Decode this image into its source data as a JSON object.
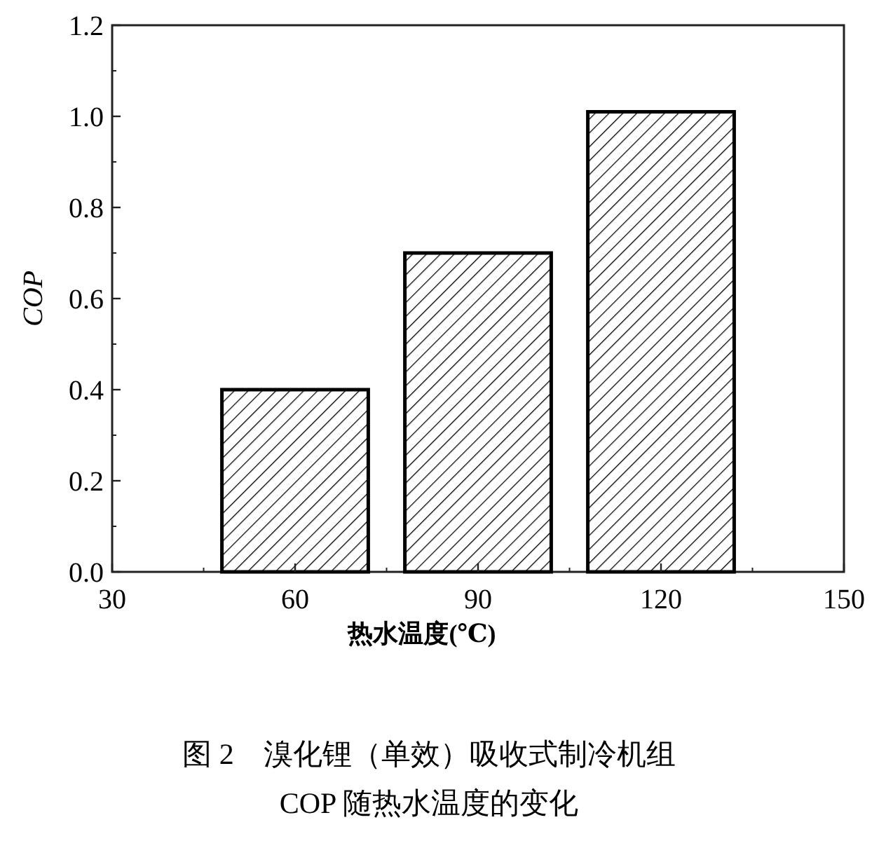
{
  "chart_data": {
    "type": "bar",
    "x": [
      60,
      90,
      120
    ],
    "values": [
      0.4,
      0.7,
      1.01
    ],
    "color": "#000000",
    "xlim": [
      30,
      150
    ],
    "xticks": [
      30,
      60,
      90,
      120,
      150
    ],
    "ylim": [
      0,
      1.2
    ],
    "yticks": [
      {
        "value": 0,
        "label": "0.0"
      },
      0.2,
      0.4,
      0.6,
      0.8,
      {
        "value": 1,
        "label": "1.0"
      },
      1.2
    ],
    "xlabel": "热水温度(℃)",
    "ylabel": "COP",
    "grid": false,
    "annotations": [
      "图 2　溴化锂（单效）吸收式制冷机组",
      "COP 随热水温度的变化"
    ]
  }
}
